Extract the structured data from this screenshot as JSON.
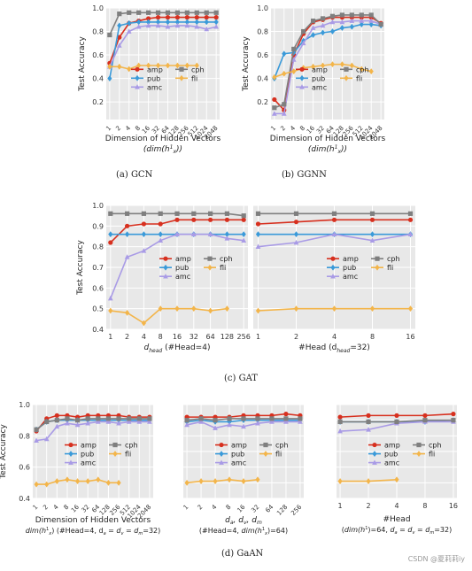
{
  "figure": {
    "captions": {
      "gcn": "(a) GCN",
      "ggnn": "(b) GGNN",
      "gat": "(c) GAT",
      "gaan": "(d) GaAN"
    },
    "watermark": "CSDN @夏莉莉iy"
  },
  "series_styles": {
    "amp": {
      "color": "#d7301f",
      "marker": "circle"
    },
    "pub": {
      "color": "#3a9ad9",
      "marker": "diamond"
    },
    "amc": {
      "color": "#a99be6",
      "marker": "triangle"
    },
    "cph": {
      "color": "#7f7f7f",
      "marker": "square"
    },
    "fli": {
      "color": "#f3b54a",
      "marker": "diamond"
    }
  },
  "chart_data": [
    {
      "id": "gcn",
      "type": "line",
      "ylabel": "Test Accuracy",
      "xlabel": "Dimension of Hidden Vectors",
      "xlabel2": "(dim(h",
      "xlabel2_sup": "1",
      "xlabel2_sub": "x",
      "xlabel2_end": "))",
      "x": [
        "1",
        "2",
        "4",
        "8",
        "16",
        "32",
        "64",
        "128",
        "256",
        "512",
        "1024",
        "2048"
      ],
      "yticks": [
        0.2,
        0.4,
        0.6,
        0.8,
        1.0
      ],
      "yticklabels": [
        "0.2",
        "0.4",
        "0.6",
        "0.8",
        "1.0"
      ],
      "ylim": [
        0.05,
        1.0
      ],
      "legend_position": "middle-right",
      "series": [
        {
          "name": "amp",
          "values": [
            0.53,
            0.75,
            0.87,
            0.89,
            0.91,
            0.92,
            0.92,
            0.92,
            0.92,
            0.92,
            0.92,
            0.92
          ]
        },
        {
          "name": "pub",
          "values": [
            0.4,
            0.85,
            0.87,
            0.88,
            0.88,
            0.88,
            0.88,
            0.88,
            0.88,
            0.88,
            0.88,
            0.88
          ]
        },
        {
          "name": "amc",
          "values": [
            0.5,
            0.68,
            0.8,
            0.84,
            0.85,
            0.85,
            0.84,
            0.85,
            0.85,
            0.84,
            0.82,
            0.84
          ]
        },
        {
          "name": "cph",
          "values": [
            0.77,
            0.95,
            0.96,
            0.96,
            0.96,
            0.96,
            0.96,
            0.96,
            0.96,
            0.96,
            0.96,
            0.96
          ]
        },
        {
          "name": "fli",
          "values": [
            0.5,
            0.5,
            0.48,
            0.51,
            0.51,
            0.51,
            0.51,
            0.51,
            0.51,
            0.51,
            null,
            null
          ]
        }
      ]
    },
    {
      "id": "ggnn",
      "type": "line",
      "ylabel": "Test Accuracy",
      "xlabel": "Dimension of Hidden Vectors",
      "xlabel2": "(dim(h",
      "xlabel2_sup": "1",
      "xlabel2_sub": "x",
      "xlabel2_end": "))",
      "x": [
        "1",
        "2",
        "4",
        "8",
        "16",
        "32",
        "64",
        "128",
        "256",
        "512",
        "1024",
        "2048"
      ],
      "yticks": [
        0.2,
        0.4,
        0.6,
        0.8,
        1.0
      ],
      "yticklabels": [
        "0.2",
        "0.4",
        "0.6",
        "0.8",
        "1.0"
      ],
      "ylim": [
        0.05,
        1.0
      ],
      "legend_position": "middle-right",
      "series": [
        {
          "name": "amp",
          "values": [
            0.22,
            0.13,
            0.6,
            0.78,
            0.88,
            0.9,
            0.92,
            0.92,
            0.92,
            0.92,
            0.92,
            0.87
          ]
        },
        {
          "name": "pub",
          "values": [
            0.4,
            0.61,
            0.62,
            0.72,
            0.77,
            0.79,
            0.8,
            0.83,
            0.84,
            0.86,
            0.86,
            0.85
          ]
        },
        {
          "name": "amc",
          "values": [
            0.1,
            0.1,
            0.56,
            0.7,
            0.83,
            0.85,
            0.88,
            0.88,
            0.89,
            0.89,
            0.89,
            0.86
          ]
        },
        {
          "name": "cph",
          "values": [
            0.15,
            0.18,
            0.65,
            0.8,
            0.89,
            0.91,
            0.93,
            0.94,
            0.94,
            0.94,
            0.94,
            0.86
          ]
        },
        {
          "name": "fli",
          "values": [
            0.41,
            0.44,
            0.46,
            0.49,
            0.5,
            0.51,
            0.52,
            0.52,
            0.51,
            0.48,
            0.46,
            null
          ]
        }
      ]
    },
    {
      "id": "gat-dhead",
      "type": "line",
      "ylabel": "Test Accuracy",
      "xlabel": "d",
      "xlabel_sub": "head",
      "xlabel_rest": " (#Head=4)",
      "x": [
        "1",
        "2",
        "4",
        "8",
        "16",
        "32",
        "64",
        "128",
        "256"
      ],
      "yticks": [
        0.4,
        0.5,
        0.6,
        0.7,
        0.8,
        0.9,
        1.0
      ],
      "yticklabels": [
        "0.4",
        "0.5",
        "0.6",
        "0.7",
        "0.8",
        "0.9",
        "1.0"
      ],
      "ylim": [
        0.4,
        1.0
      ],
      "legend_position": "lower-right",
      "series": [
        {
          "name": "amp",
          "values": [
            0.82,
            0.9,
            0.91,
            0.91,
            0.93,
            0.93,
            0.93,
            0.93,
            0.93
          ]
        },
        {
          "name": "pub",
          "values": [
            0.86,
            0.86,
            0.86,
            0.86,
            0.86,
            0.86,
            0.86,
            0.86,
            0.86
          ]
        },
        {
          "name": "amc",
          "values": [
            0.55,
            0.75,
            0.78,
            0.83,
            0.86,
            0.86,
            0.86,
            0.84,
            0.83
          ]
        },
        {
          "name": "cph",
          "values": [
            0.96,
            0.96,
            0.96,
            0.96,
            0.96,
            0.96,
            0.96,
            0.96,
            0.95
          ]
        },
        {
          "name": "fli",
          "values": [
            0.49,
            0.48,
            0.43,
            0.5,
            0.5,
            0.5,
            0.49,
            0.5,
            null
          ]
        }
      ]
    },
    {
      "id": "gat-head",
      "type": "line",
      "xlabel": "#Head (d",
      "xlabel_sub": "head",
      "xlabel_rest": "=32)",
      "x": [
        "1",
        "2",
        "4",
        "8",
        "16"
      ],
      "ylim": [
        0.4,
        1.0
      ],
      "legend_position": "lower-right",
      "series": [
        {
          "name": "amp",
          "values": [
            0.91,
            0.92,
            0.93,
            0.93,
            0.93
          ]
        },
        {
          "name": "pub",
          "values": [
            0.86,
            0.86,
            0.86,
            0.86,
            0.86
          ]
        },
        {
          "name": "amc",
          "values": [
            0.8,
            0.82,
            0.86,
            0.83,
            0.86
          ]
        },
        {
          "name": "cph",
          "values": [
            0.96,
            0.96,
            0.96,
            0.96,
            0.96
          ]
        },
        {
          "name": "fli",
          "values": [
            0.49,
            0.5,
            0.5,
            0.5,
            0.5
          ]
        }
      ]
    },
    {
      "id": "gaan-dim",
      "type": "line",
      "ylabel": "Test Accuracy",
      "xlabel": "Dimension of Hidden Vectors",
      "xlabel2": "dim(h",
      "xlabel2_sup": "1",
      "xlabel2_sub": "x",
      "xlabel2_end": ") (#Head=4, d",
      "xlabel2_tail": "a",
      "xlabel2_tail2": " = d",
      "xlabel2_tail3": "v",
      "xlabel2_tail4": " = d",
      "xlabel2_tail5": "m",
      "xlabel2_tail6": "=32)",
      "x": [
        "1",
        "2",
        "4",
        "8",
        "16",
        "32",
        "64",
        "128",
        "256",
        "512",
        "1024",
        "2048"
      ],
      "yticks": [
        0.4,
        0.6,
        0.8,
        1.0
      ],
      "yticklabels": [
        "0.4",
        "0.6",
        "0.8",
        "1.0"
      ],
      "ylim": [
        0.4,
        1.0
      ],
      "legend_position": "lower-right",
      "series": [
        {
          "name": "amp",
          "values": [
            0.83,
            0.91,
            0.93,
            0.93,
            0.92,
            0.93,
            0.93,
            0.93,
            0.93,
            0.92,
            0.92,
            0.92
          ]
        },
        {
          "name": "pub",
          "values": [
            0.84,
            0.89,
            0.9,
            0.9,
            0.9,
            0.9,
            0.9,
            0.9,
            0.9,
            0.9,
            0.9,
            0.9
          ]
        },
        {
          "name": "amc",
          "values": [
            0.77,
            0.78,
            0.86,
            0.88,
            0.87,
            0.88,
            0.89,
            0.89,
            0.88,
            0.89,
            0.89,
            0.89
          ]
        },
        {
          "name": "cph",
          "values": [
            0.84,
            0.89,
            0.9,
            0.91,
            0.9,
            0.91,
            0.91,
            0.91,
            0.91,
            0.91,
            0.91,
            0.91
          ]
        },
        {
          "name": "fli",
          "values": [
            0.49,
            0.49,
            0.51,
            0.52,
            0.51,
            0.51,
            0.52,
            0.5,
            0.5,
            null,
            null,
            null
          ]
        }
      ]
    },
    {
      "id": "gaan-dadvdm",
      "type": "line",
      "xlabel": "d",
      "x": [
        "1",
        "2",
        "4",
        "8",
        "16",
        "32",
        "64",
        "128",
        "256"
      ],
      "ylim": [
        0.4,
        1.0
      ],
      "legend_position": "lower-right",
      "series": [
        {
          "name": "amp",
          "values": [
            0.92,
            0.92,
            0.92,
            0.92,
            0.93,
            0.93,
            0.93,
            0.94,
            0.93
          ]
        },
        {
          "name": "pub",
          "values": [
            0.89,
            0.9,
            0.89,
            0.89,
            0.9,
            0.9,
            0.9,
            0.9,
            0.9
          ]
        },
        {
          "name": "amc",
          "values": [
            0.87,
            0.89,
            0.85,
            0.87,
            0.86,
            0.88,
            0.89,
            0.89,
            0.89
          ]
        },
        {
          "name": "cph",
          "values": [
            0.9,
            0.91,
            0.9,
            0.91,
            0.91,
            0.91,
            0.91,
            0.91,
            0.91
          ]
        },
        {
          "name": "fli",
          "values": [
            0.5,
            0.51,
            0.51,
            0.52,
            0.51,
            0.52,
            null,
            null,
            null
          ]
        }
      ]
    },
    {
      "id": "gaan-head",
      "type": "line",
      "xlabel": "#Head",
      "x": [
        "1",
        "2",
        "4",
        "8",
        "16"
      ],
      "ylim": [
        0.4,
        1.0
      ],
      "legend_position": "lower-right",
      "series": [
        {
          "name": "amp",
          "values": [
            0.92,
            0.93,
            0.93,
            0.93,
            0.94
          ]
        },
        {
          "name": "pub",
          "values": [
            0.89,
            0.89,
            0.89,
            0.89,
            0.9
          ]
        },
        {
          "name": "amc",
          "values": [
            0.83,
            0.84,
            0.88,
            0.89,
            0.89
          ]
        },
        {
          "name": "cph",
          "values": [
            0.89,
            0.89,
            0.89,
            0.9,
            0.9
          ]
        },
        {
          "name": "fli",
          "values": [
            0.51,
            0.51,
            0.52,
            null,
            null
          ]
        }
      ]
    }
  ]
}
